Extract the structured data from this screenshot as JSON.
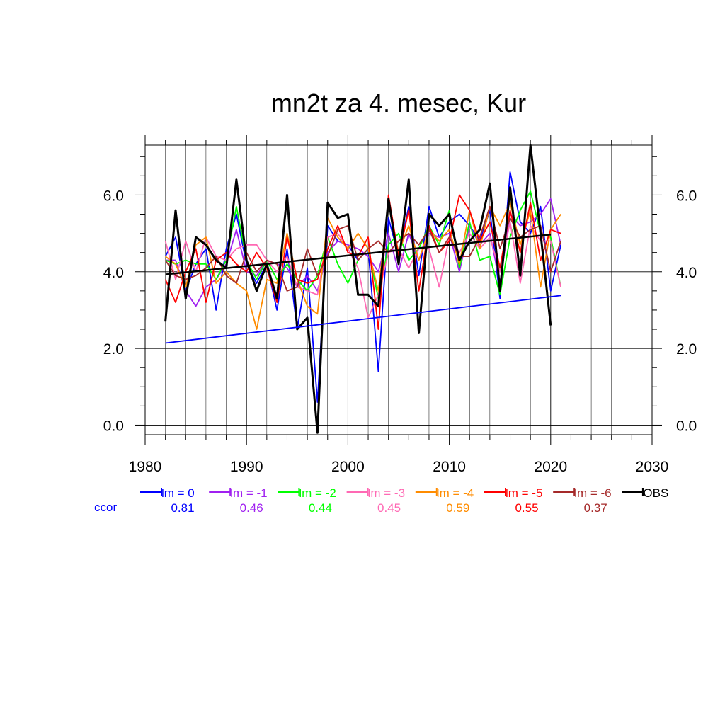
{
  "chart_data": {
    "type": "line",
    "title": "mn2t za 4. mesec, Kur",
    "xlabel": "",
    "ylabel": "",
    "xlim": [
      1980,
      2030
    ],
    "ylim": [
      -0.25,
      7.3
    ],
    "x_ticks": [
      "1980",
      "1990",
      "2000",
      "2010",
      "2020",
      "2030"
    ],
    "y_ticks": [
      "0.0",
      "2.0",
      "4.0",
      "6.0"
    ],
    "x_tick_values": [
      1980,
      1990,
      2000,
      2010,
      2020,
      2030
    ],
    "y_tick_values": [
      0,
      2,
      4,
      6
    ],
    "grid": true,
    "years": [
      1982,
      1983,
      1984,
      1985,
      1986,
      1987,
      1988,
      1989,
      1990,
      1991,
      1992,
      1993,
      1994,
      1995,
      1996,
      1997,
      1998,
      1999,
      2000,
      2001,
      2002,
      2003,
      2004,
      2005,
      2006,
      2007,
      2008,
      2009,
      2010,
      2011,
      2012,
      2013,
      2014,
      2015,
      2016,
      2017,
      2018,
      2019,
      2020,
      2021
    ],
    "ccor_label": "ccor",
    "series": [
      {
        "name": "lm = 0",
        "color": "#0000ff",
        "ccor": "0.81",
        "values": [
          4.4,
          4.9,
          3.5,
          4.2,
          4.6,
          3.0,
          4.6,
          5.5,
          4.2,
          3.7,
          4.2,
          3.0,
          4.6,
          2.5,
          4.1,
          0.6,
          5.2,
          4.8,
          4.7,
          4.3,
          4.6,
          1.4,
          5.4,
          4.4,
          5.7,
          3.9,
          5.7,
          4.9,
          5.3,
          5.5,
          5.2,
          4.8,
          5.6,
          3.3,
          6.6,
          5.3,
          5.0,
          5.7,
          3.5,
          4.7
        ]
      },
      {
        "name": "lm = -1",
        "color": "#a020f0",
        "ccor": "0.46",
        "values": [
          4.3,
          4.3,
          3.5,
          3.1,
          3.6,
          3.8,
          4.2,
          5.1,
          4.0,
          3.9,
          4.3,
          4.2,
          4.1,
          3.6,
          3.9,
          3.5,
          4.5,
          4.8,
          4.7,
          4.6,
          4.4,
          4.0,
          5.0,
          4.0,
          5.0,
          4.3,
          5.0,
          4.9,
          5.0,
          4.0,
          5.2,
          4.7,
          5.0,
          3.7,
          5.5,
          5.2,
          5.3,
          5.5,
          5.9,
          4.7
        ]
      },
      {
        "name": "lm = -2",
        "color": "#00ff00",
        "ccor": "0.44",
        "values": [
          4.3,
          4.2,
          4.3,
          4.2,
          4.2,
          3.8,
          4.3,
          5.7,
          4.3,
          3.8,
          4.3,
          3.8,
          4.2,
          3.8,
          3.5,
          3.9,
          4.9,
          4.2,
          3.7,
          4.3,
          4.6,
          3.3,
          4.7,
          5.0,
          4.3,
          4.6,
          5.2,
          4.7,
          5.6,
          4.1,
          5.3,
          4.3,
          4.4,
          3.4,
          4.9,
          5.6,
          6.1,
          5.0,
          4.9,
          3.6
        ]
      },
      {
        "name": "lm = -3",
        "color": "#ff69b4",
        "ccor": "0.45",
        "values": [
          4.8,
          3.8,
          4.8,
          4.0,
          4.9,
          4.4,
          4.3,
          4.6,
          4.7,
          4.7,
          4.3,
          4.0,
          4.4,
          3.6,
          3.5,
          3.4,
          4.9,
          5.0,
          4.6,
          4.1,
          2.8,
          3.4,
          4.5,
          4.6,
          4.1,
          4.6,
          4.6,
          3.6,
          4.9,
          4.5,
          5.0,
          4.6,
          4.9,
          4.0,
          5.3,
          3.7,
          5.2,
          4.8,
          4.8,
          3.6
        ]
      },
      {
        "name": "lm = -4",
        "color": "#ff8c00",
        "ccor": "0.59",
        "values": [
          4.4,
          4.2,
          3.6,
          4.7,
          4.9,
          3.7,
          4.0,
          3.7,
          3.5,
          2.5,
          3.8,
          3.7,
          5.0,
          3.8,
          3.1,
          2.9,
          5.4,
          4.9,
          4.6,
          5.0,
          4.6,
          3.5,
          5.8,
          4.5,
          5.2,
          4.3,
          5.1,
          4.8,
          5.1,
          4.2,
          5.6,
          4.6,
          5.7,
          5.2,
          5.8,
          4.7,
          5.6,
          3.6,
          5.1,
          5.5
        ]
      },
      {
        "name": "lm = -5",
        "color": "#ff0000",
        "ccor": "0.55",
        "values": [
          3.8,
          3.2,
          4.0,
          4.6,
          3.2,
          4.3,
          4.5,
          4.2,
          4.0,
          4.5,
          4.1,
          3.2,
          4.9,
          3.8,
          3.7,
          3.8,
          4.6,
          5.2,
          4.5,
          4.4,
          4.9,
          2.5,
          6.0,
          4.4,
          5.6,
          3.5,
          5.2,
          4.5,
          4.8,
          6.0,
          5.6,
          4.8,
          5.3,
          4.1,
          5.6,
          4.5,
          5.8,
          4.3,
          5.1,
          5.0
        ]
      },
      {
        "name": "lm = -6",
        "color": "#a52a2a",
        "ccor": "0.37",
        "values": [
          4.3,
          3.9,
          3.8,
          3.9,
          4.1,
          4.4,
          3.9,
          3.7,
          4.5,
          4.0,
          4.3,
          4.2,
          3.5,
          3.6,
          4.6,
          3.9,
          4.4,
          5.1,
          5.2,
          4.3,
          4.6,
          4.8,
          4.5,
          4.8,
          5.0,
          4.7,
          5.1,
          4.5,
          4.9,
          4.4,
          4.4,
          4.9,
          5.7,
          4.6,
          5.4,
          4.9,
          5.1,
          5.2,
          4.0,
          4.8
        ]
      },
      {
        "name": "OBS",
        "color": "#000000",
        "ccor": "",
        "values": [
          2.7,
          5.6,
          3.3,
          4.9,
          4.7,
          4.3,
          4.1,
          6.4,
          4.3,
          3.5,
          4.2,
          3.3,
          6.0,
          2.5,
          2.8,
          -0.2,
          5.8,
          5.4,
          5.5,
          3.4,
          3.4,
          3.1,
          5.9,
          4.2,
          6.4,
          2.4,
          5.5,
          5.2,
          5.5,
          4.3,
          4.8,
          5.1,
          6.3,
          3.5,
          6.2,
          3.9,
          7.3,
          5.0,
          2.6,
          null
        ]
      }
    ],
    "trend_lines": [
      {
        "color": "#000000",
        "x": [
          1982,
          2020
        ],
        "y": [
          3.93,
          4.97
        ]
      },
      {
        "color": "#0000ff",
        "x": [
          1982,
          2021
        ],
        "y": [
          2.14,
          3.38
        ]
      }
    ]
  }
}
